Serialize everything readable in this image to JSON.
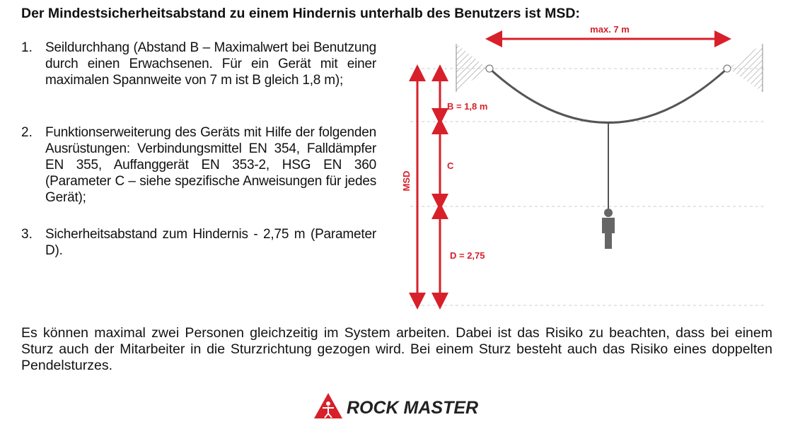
{
  "header": {
    "title": "Der Mindestsicherheitsabstand zu einem Hindernis unterhalb des Benutzers ist MSD:"
  },
  "list": [
    {
      "number": "1.",
      "text": "Seildurchhang (Abstand B – Maximalwert bei Benutzung durch einen Erwachsenen. Für ein Gerät mit einer maximalen Spannweite von 7 m ist B gleich 1,8 m);"
    },
    {
      "number": "2.",
      "text": "Funktionserweiterung des Geräts mit Hilfe der folgenden Ausrüstungen: Verbindungsmittel EN 354, Falldämpfer EN 355, Auffanggerät EN 353-2, HSG EN 360 (Parameter C – siehe spezifische Anweisungen für jedes Gerät);"
    },
    {
      "number": "3.",
      "text": "Sicherheitsabstand zum Hindernis - 2,75 m (Parameter D)."
    }
  ],
  "diagram": {
    "span": "max. 7 m",
    "b": "B = 1,8 m",
    "c": "C",
    "d": "D = 2,75",
    "msd": "MSD"
  },
  "footer": {
    "text": "Es können maximal zwei Personen gleichzeitig im System arbeiten. Dabei ist das Risiko zu beachten, dass bei einem Sturz auch der Mitarbeiter in die Sturzrichtung gezogen wird. Bei einem Sturz besteht auch das Risiko eines doppelten Pendelsturzes."
  },
  "logo": {
    "text": "ROCK MASTER"
  }
}
